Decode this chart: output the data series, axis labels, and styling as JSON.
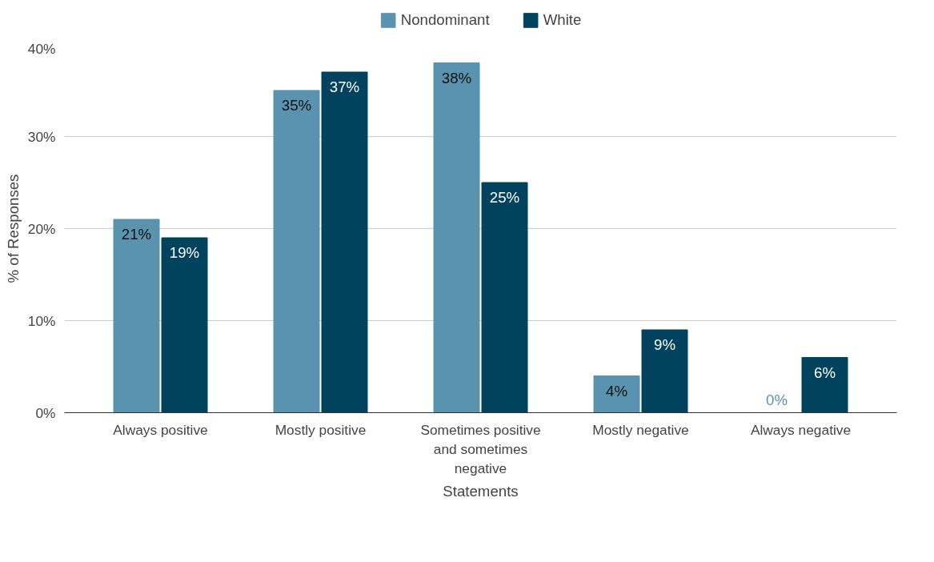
{
  "chart_data": {
    "type": "bar",
    "xlabel": "Statements",
    "ylabel": "% of Responses",
    "categories": [
      "Always positive",
      "Mostly positive",
      "Sometimes positive and sometimes negative",
      "Mostly negative",
      "Always negative"
    ],
    "series": [
      {
        "name": "Nondominant",
        "color": "#5a93b0",
        "values": [
          21,
          35,
          38,
          4,
          0
        ],
        "value_labels": [
          "21%",
          "35%",
          "38%",
          "4%",
          "0%"
        ]
      },
      {
        "name": "White",
        "color": "#01425f",
        "values": [
          19,
          37,
          25,
          9,
          6
        ],
        "value_labels": [
          "19%",
          "37%",
          "25%",
          "9%",
          "6%"
        ]
      }
    ],
    "ylim": [
      0,
      40
    ],
    "yticks": [
      {
        "value": 0,
        "label": "0%"
      },
      {
        "value": 10,
        "label": "10%"
      },
      {
        "value": 20,
        "label": "20%"
      },
      {
        "value": 30,
        "label": "30%"
      },
      {
        "value": 40,
        "label": "40%"
      }
    ],
    "grid": "y",
    "legend": "top"
  }
}
